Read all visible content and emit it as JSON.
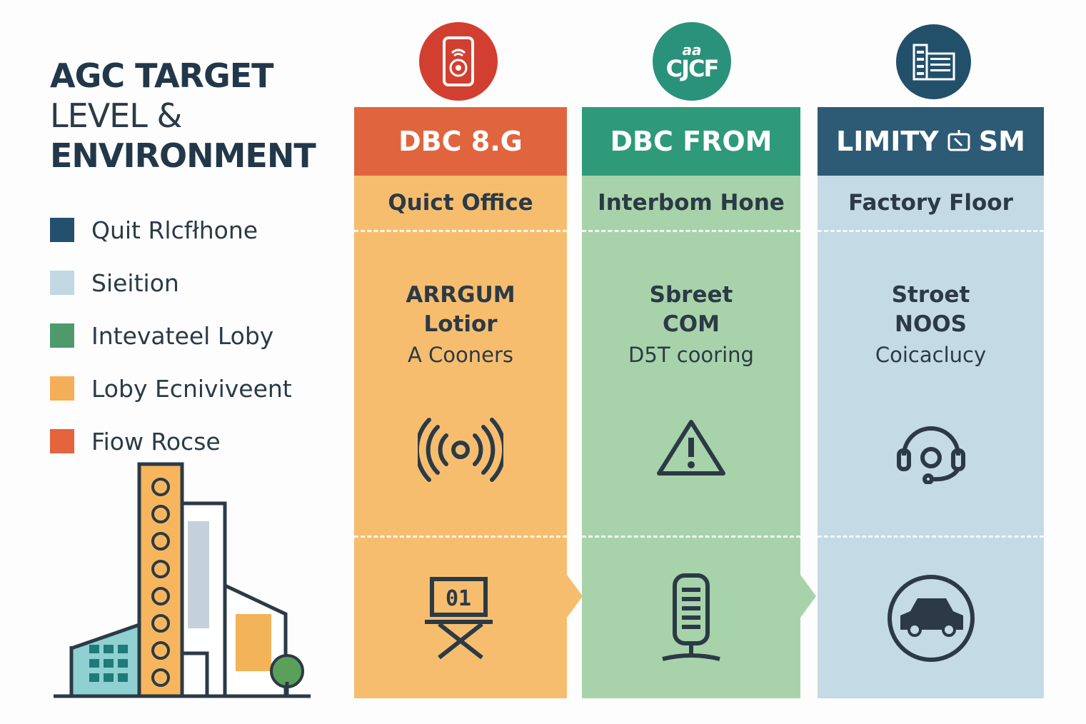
{
  "title": {
    "line1": "AGC TARGET",
    "line2": "LEVEL &",
    "line3": "ENVIRONMENT"
  },
  "legend": [
    {
      "label": "Quit Rlcfłhone",
      "color": "#24506e"
    },
    {
      "label": "Sieition",
      "color": "#c2d8e2"
    },
    {
      "label": "Intevateel Loby",
      "color": "#4e9a6c"
    },
    {
      "label": "Loby Ecnivіveent",
      "color": "#f5ae58"
    },
    {
      "label": "Fiow Rocse",
      "color": "#e3643d"
    }
  ],
  "columns": [
    {
      "header": "DBC 8.G",
      "subheader": "Quict Office",
      "line1": "ARRGUM",
      "line2": "Lotior",
      "line3": "A Cooners",
      "icon_top": "phone-speaker-icon",
      "icon_mid": "broadcast-signal-icon",
      "icon_low": "director-chair-icon",
      "low_label": "01",
      "colors": {
        "header": "#e0653f",
        "body": "#f7bd6e",
        "circle": "#d23f30"
      }
    },
    {
      "header": "DBC FROM",
      "subheader": "Interbom Hone",
      "line1": "Sbreet",
      "line2": "COM",
      "line3": "D5T cooring",
      "icon_top": "cjcf-logo-icon",
      "icon_top_text": {
        "small": "aa",
        "big": "CJCF"
      },
      "icon_mid": "warning-triangle-icon",
      "icon_low": "microphone-icon",
      "colors": {
        "header": "#2e9a7a",
        "body": "#a8d3aa",
        "circle": "#2a927a"
      }
    },
    {
      "header": "LIMITY",
      "header_suffix": "SM",
      "subheader": "Factory Floor",
      "line1": "Stroet",
      "line2": "NOOS",
      "line3": "Coicacluсy",
      "icon_top": "building-grid-icon",
      "icon_mid": "headset-icon",
      "icon_low": "car-icon",
      "colors": {
        "header": "#2d5a75",
        "body": "#c4dae5",
        "circle": "#22506b"
      }
    }
  ]
}
